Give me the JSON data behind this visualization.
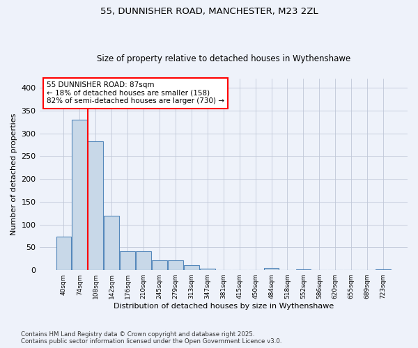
{
  "title_line1": "55, DUNNISHER ROAD, MANCHESTER, M23 2ZL",
  "title_line2": "Size of property relative to detached houses in Wythenshawe",
  "xlabel": "Distribution of detached houses by size in Wythenshawe",
  "ylabel": "Number of detached properties",
  "categories": [
    "40sqm",
    "74sqm",
    "108sqm",
    "142sqm",
    "176sqm",
    "210sqm",
    "245sqm",
    "279sqm",
    "313sqm",
    "347sqm",
    "381sqm",
    "415sqm",
    "450sqm",
    "484sqm",
    "518sqm",
    "552sqm",
    "586sqm",
    "620sqm",
    "655sqm",
    "689sqm",
    "723sqm"
  ],
  "values": [
    73,
    330,
    283,
    120,
    42,
    42,
    21,
    21,
    11,
    4,
    0,
    0,
    0,
    5,
    0,
    2,
    0,
    0,
    0,
    0,
    2
  ],
  "bar_color": "#c8d8e8",
  "bar_edge_color": "#5588bb",
  "vline_x": 1.5,
  "vline_color": "red",
  "annotation_text": "55 DUNNISHER ROAD: 87sqm\n← 18% of detached houses are smaller (158)\n82% of semi-detached houses are larger (730) →",
  "annotation_box_color": "white",
  "annotation_box_edge_color": "red",
  "ylim": [
    0,
    420
  ],
  "yticks": [
    0,
    50,
    100,
    150,
    200,
    250,
    300,
    350,
    400
  ],
  "footer_text": "Contains HM Land Registry data © Crown copyright and database right 2025.\nContains public sector information licensed under the Open Government Licence v3.0.",
  "bg_color": "#eef2fa",
  "grid_color": "#c0c8d8"
}
